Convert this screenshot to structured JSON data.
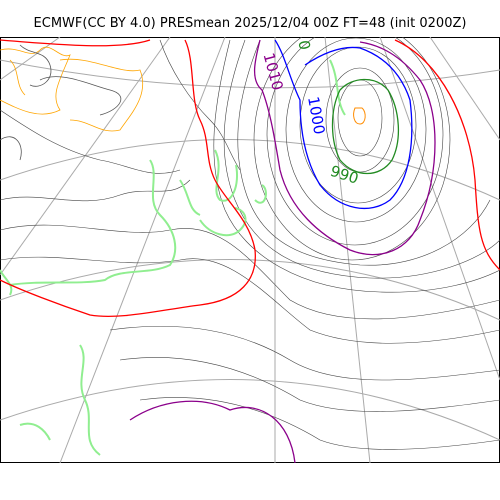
{
  "title": "ECMWF(CC BY 4.0) PRESmean 2025/12/04 00Z FT=48 (init 0200Z)",
  "isobar_labels": [
    "990",
    "1000",
    "1010",
    "0"
  ],
  "colors": {
    "coast": "#90ee90",
    "isobar_990": "#228b22",
    "isobar_1000": "#0000ff",
    "isobar_1010": "#8b008b",
    "isobar_1020": "#ff0000",
    "terrain_contour": "#ffa500",
    "isobar_thin": "#000000",
    "graticule": "#aaaaaa"
  }
}
